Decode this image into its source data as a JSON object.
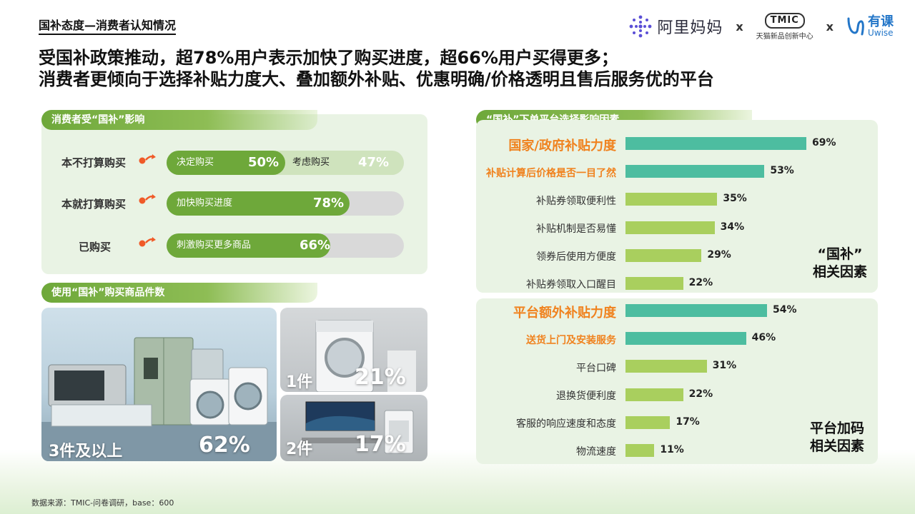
{
  "page_title": "国补态度—消费者认知情况",
  "logos": {
    "alimama": "阿里妈妈",
    "x1": "x",
    "tmic": "TMIC",
    "tmic_sub": "天猫新品创新中心",
    "x2": "x",
    "uwise_cn": "有课",
    "uwise_en": "Uwise"
  },
  "headline": {
    "line1": "受国补政策推动，超78%用户表示加快了购买进度，超66%用户买得更多；",
    "line2": "消费者更倾向于选择补贴力度大、叠加额外补贴、优惠明确/价格透明且售后服务优的平台"
  },
  "influence": {
    "tag": "消费者受“国补”影响",
    "rows": [
      {
        "label": "本不打算购买",
        "main_text": "决定购买",
        "main_pct": "50%",
        "main_value": 50,
        "alt_text": "考虑购买",
        "alt_pct": "47%",
        "alt_value": 47
      },
      {
        "label": "本就打算购买",
        "main_text": "加快购买进度",
        "main_pct": "78%",
        "main_value": 78
      },
      {
        "label": "已购买",
        "main_text": "刺激购买更多商品",
        "main_pct": "66%",
        "main_value": 66
      }
    ]
  },
  "quantity": {
    "tag": "使用“国补”购买商品件数",
    "items": [
      {
        "count": "3件及以上",
        "pct": "62%"
      },
      {
        "count": "1件",
        "pct": "21%"
      },
      {
        "count": "2件",
        "pct": "17%"
      }
    ]
  },
  "platform": {
    "tag": "“国补”下单平台选择影响因素",
    "group1_caption": [
      "“国补”",
      "相关因素"
    ],
    "group2_caption": [
      "平台加码",
      "相关因素"
    ]
  },
  "chart_data": {
    "type": "bar",
    "orientation": "horizontal",
    "title": "“国补”下单平台选择影响因素",
    "xlim": [
      0,
      100
    ],
    "groups": [
      {
        "name": "“国补”相关因素",
        "categories": [
          "国家/政府补贴力度",
          "补贴计算后价格是否一目了然",
          "补贴券领取便利性",
          "补贴机制是否易懂",
          "领券后使用方便度",
          "补贴券领取入口醒目"
        ],
        "values": [
          69,
          53,
          35,
          34,
          29,
          22
        ],
        "labels": [
          "69%",
          "53%",
          "35%",
          "34%",
          "29%",
          "22%"
        ]
      },
      {
        "name": "平台加码相关因素",
        "categories": [
          "平台额外补贴力度",
          "送货上门及安装服务",
          "平台口碑",
          "退换货便利度",
          "客服的响应速度和态度",
          "物流速度"
        ],
        "values": [
          54,
          46,
          31,
          22,
          17,
          11
        ],
        "labels": [
          "54%",
          "46%",
          "31%",
          "22%",
          "17%",
          "11%"
        ]
      }
    ],
    "colors": {
      "top2": "#4dbda0",
      "rest": "#a9cf5e"
    }
  },
  "source": "数据来源：TMIC-问卷调研，base：600"
}
